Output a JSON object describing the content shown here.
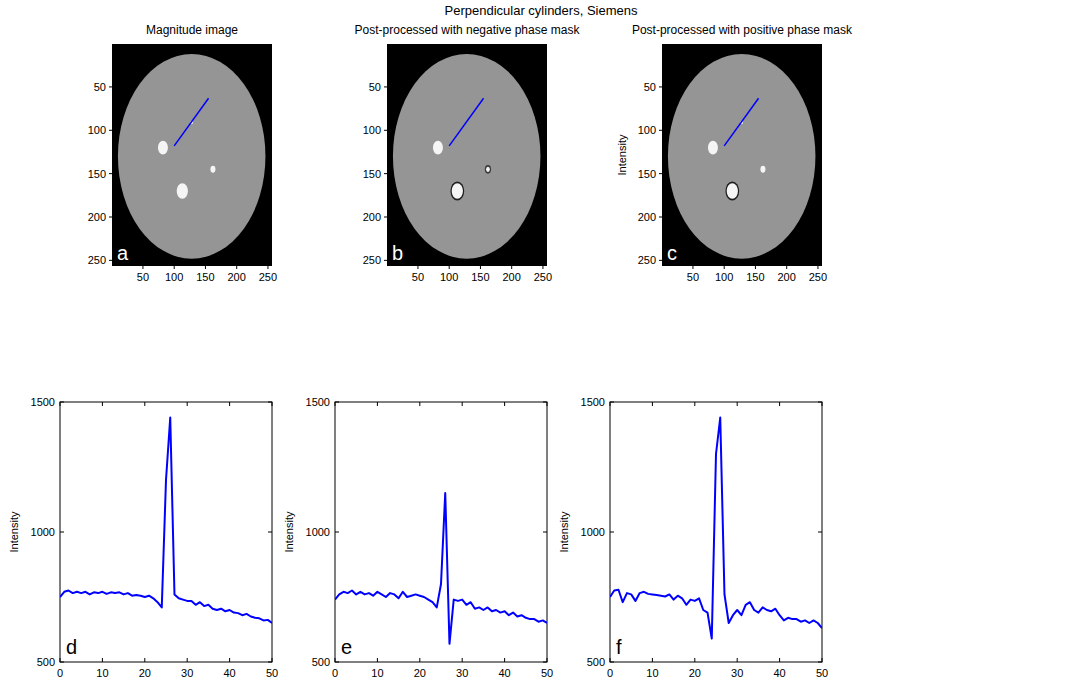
{
  "title": "Perpendicular cylinders, Siemens",
  "chart_data": [
    {
      "type": "image",
      "title": "Magnitude image",
      "panel_label": "a",
      "xlim": [
        0.5,
        256.5
      ],
      "ylim": [
        256.5,
        0.5
      ],
      "xticks": [
        50,
        100,
        150,
        200,
        250
      ],
      "yticks": [
        50,
        100,
        150,
        200,
        250
      ],
      "clim": [
        0,
        1300
      ],
      "objects": [
        {
          "x": 128,
          "y": 130,
          "r": 118,
          "level": 760
        },
        {
          "x": 82,
          "y": 120,
          "r": 8,
          "level": 1250
        },
        {
          "x": 113,
          "y": 170,
          "r": 9,
          "level": 1250
        },
        {
          "x": 162,
          "y": 145,
          "r": 4,
          "level": 1250
        },
        {
          "x": 128,
          "y": 91,
          "r": 2,
          "level": 1250
        }
      ],
      "profile": {
        "x": [
          100,
          155
        ],
        "y": [
          118,
          63
        ],
        "color": "#0000ff"
      }
    },
    {
      "type": "image",
      "title": "Post-processed with negative phase mask",
      "panel_label": "b",
      "xlim": [
        0.5,
        256.5
      ],
      "ylim": [
        256.5,
        0.5
      ],
      "xticks": [
        50,
        100,
        150,
        200,
        250
      ],
      "yticks": [
        50,
        100,
        150,
        200,
        250
      ],
      "clim": [
        0,
        1300
      ],
      "objects": [
        {
          "x": 128,
          "y": 130,
          "r": 118,
          "level": 760
        },
        {
          "x": 82,
          "y": 120,
          "r": 8,
          "level": 1250
        },
        {
          "x": 113,
          "y": 170,
          "r": 11,
          "level": 150
        },
        {
          "x": 113,
          "y": 170,
          "r": 9,
          "level": 1250
        },
        {
          "x": 162,
          "y": 145,
          "r": 5,
          "level": 300
        },
        {
          "x": 162,
          "y": 145,
          "r": 3,
          "level": 1250
        }
      ],
      "profile": {
        "x": [
          100,
          155
        ],
        "y": [
          118,
          63
        ],
        "color": "#0000ff"
      }
    },
    {
      "type": "image",
      "title": "Post-processed with positive phase mask",
      "ylabel": "Intensity",
      "panel_label": "c",
      "xlim": [
        0.5,
        256.5
      ],
      "ylim": [
        256.5,
        0.5
      ],
      "xticks": [
        50,
        100,
        150,
        200,
        250
      ],
      "yticks": [
        50,
        100,
        150,
        200,
        250
      ],
      "clim": [
        0,
        1300
      ],
      "objects": [
        {
          "x": 128,
          "y": 130,
          "r": 118,
          "level": 760
        },
        {
          "x": 82,
          "y": 120,
          "r": 8,
          "level": 1250
        },
        {
          "x": 113,
          "y": 170,
          "r": 11,
          "level": 150
        },
        {
          "x": 113,
          "y": 170,
          "r": 9,
          "level": 1250
        },
        {
          "x": 162,
          "y": 145,
          "r": 4,
          "level": 1250
        },
        {
          "x": 128,
          "y": 91,
          "r": 2,
          "level": 1250
        }
      ],
      "profile": {
        "x": [
          100,
          155
        ],
        "y": [
          118,
          63
        ],
        "color": "#0000ff"
      }
    },
    {
      "type": "line",
      "panel_label": "d",
      "ylabel": "Intensity",
      "xlim": [
        0,
        50
      ],
      "ylim": [
        500,
        1500
      ],
      "xticks": [
        0,
        10,
        20,
        30,
        40,
        50
      ],
      "yticks": [
        500,
        1000,
        1500
      ],
      "x": [
        0,
        1,
        2,
        3,
        4,
        5,
        6,
        7,
        8,
        9,
        10,
        11,
        12,
        13,
        14,
        15,
        16,
        17,
        18,
        19,
        20,
        21,
        22,
        23,
        24,
        25,
        26,
        27,
        28,
        29,
        30,
        31,
        32,
        33,
        34,
        35,
        36,
        37,
        38,
        39,
        40,
        41,
        42,
        43,
        44,
        45,
        46,
        47,
        48,
        49,
        50
      ],
      "series": [
        {
          "color": "#0000ff",
          "values": [
            750,
            770,
            775,
            765,
            770,
            765,
            770,
            760,
            768,
            765,
            770,
            762,
            768,
            765,
            768,
            760,
            765,
            755,
            758,
            755,
            750,
            755,
            745,
            730,
            710,
            1200,
            1440,
            760,
            745,
            740,
            735,
            735,
            720,
            730,
            715,
            720,
            705,
            700,
            705,
            695,
            700,
            690,
            688,
            680,
            685,
            675,
            670,
            668,
            660,
            662,
            650
          ]
        }
      ]
    },
    {
      "type": "line",
      "panel_label": "e",
      "ylabel": "Intensity",
      "xlim": [
        0,
        50
      ],
      "ylim": [
        500,
        1500
      ],
      "xticks": [
        0,
        10,
        20,
        30,
        40,
        50
      ],
      "yticks": [
        500,
        1000,
        1500
      ],
      "x": [
        0,
        1,
        2,
        3,
        4,
        5,
        6,
        7,
        8,
        9,
        10,
        11,
        12,
        13,
        14,
        15,
        16,
        17,
        18,
        19,
        20,
        21,
        22,
        23,
        24,
        25,
        26,
        27,
        28,
        29,
        30,
        31,
        32,
        33,
        34,
        35,
        36,
        37,
        38,
        39,
        40,
        41,
        42,
        43,
        44,
        45,
        46,
        47,
        48,
        49,
        50
      ],
      "series": [
        {
          "color": "#0000ff",
          "values": [
            740,
            760,
            770,
            765,
            775,
            760,
            770,
            760,
            765,
            755,
            770,
            760,
            750,
            765,
            760,
            745,
            770,
            750,
            755,
            760,
            755,
            750,
            740,
            730,
            710,
            800,
            1150,
            570,
            740,
            735,
            740,
            720,
            730,
            705,
            710,
            700,
            710,
            695,
            700,
            690,
            695,
            680,
            690,
            675,
            680,
            670,
            665,
            665,
            655,
            660,
            650
          ]
        }
      ]
    },
    {
      "type": "line",
      "panel_label": "f",
      "ylabel": "Intensity",
      "xlim": [
        0,
        50
      ],
      "ylim": [
        500,
        1500
      ],
      "xticks": [
        0,
        10,
        20,
        30,
        40,
        50
      ],
      "yticks": [
        500,
        1000,
        1500
      ],
      "x": [
        0,
        1,
        2,
        3,
        4,
        5,
        6,
        7,
        8,
        9,
        10,
        11,
        12,
        13,
        14,
        15,
        16,
        17,
        18,
        19,
        20,
        21,
        22,
        23,
        24,
        25,
        26,
        27,
        28,
        29,
        30,
        31,
        32,
        33,
        34,
        35,
        36,
        37,
        38,
        39,
        40,
        41,
        42,
        43,
        44,
        45,
        46,
        47,
        48,
        49,
        50
      ],
      "series": [
        {
          "color": "#0000ff",
          "values": [
            750,
            775,
            778,
            730,
            765,
            760,
            735,
            765,
            770,
            762,
            760,
            758,
            755,
            752,
            760,
            740,
            755,
            745,
            720,
            740,
            735,
            745,
            700,
            690,
            590,
            1300,
            1440,
            760,
            650,
            680,
            700,
            680,
            720,
            730,
            700,
            690,
            710,
            700,
            695,
            705,
            680,
            660,
            670,
            665,
            665,
            655,
            660,
            650,
            660,
            650,
            630
          ]
        }
      ]
    }
  ]
}
